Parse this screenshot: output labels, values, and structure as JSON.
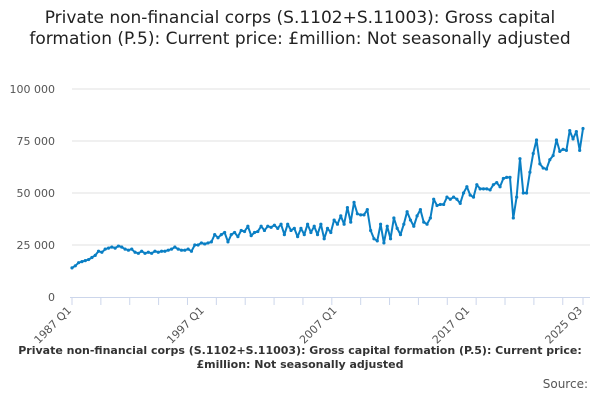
{
  "title": "Private non-financial corps (S.1102+S.11003): Gross capital formation (P.5): Current price: £million: Not seasonally adjusted",
  "footer": "Private non-financial corps (S.1102+S.11003): Gross capital formation (P.5): Current price: £million: Not seasonally adjusted",
  "source_label": "Source:",
  "colors": {
    "line": "#0a7fc4",
    "grid": "#e0e0e0",
    "axis": "#ccd6eb"
  },
  "chart_data": {
    "type": "line",
    "title": "Private non-financial corps (S.1102+S.11003): Gross capital formation (P.5): Current price: £million: Not seasonally adjusted",
    "xlabel": "",
    "ylabel": "",
    "x_start": "1987 Q1",
    "x_end": "2025 Q3",
    "frequency": "quarterly",
    "ylim": [
      0,
      100000
    ],
    "yticks": [
      0,
      25000,
      50000,
      75000,
      100000
    ],
    "ytick_labels": [
      "0",
      "25 000",
      "50 000",
      "75 000",
      "100 000"
    ],
    "xtick_labels": [
      {
        "label": "1987 Q1",
        "index": 0
      },
      {
        "label": "1997 Q1",
        "index": 40
      },
      {
        "label": "2007 Q1",
        "index": 80
      },
      {
        "label": "2017 Q1",
        "index": 120
      },
      {
        "label": "2025 Q3",
        "index": 154
      }
    ],
    "grid": true,
    "legend": "none",
    "values": [
      14000,
      15000,
      16500,
      17000,
      17500,
      18000,
      19000,
      20000,
      22000,
      21500,
      23000,
      23500,
      24000,
      23500,
      24500,
      24000,
      23000,
      22500,
      23000,
      21500,
      21000,
      22000,
      21000,
      21500,
      21000,
      22000,
      21500,
      22000,
      22000,
      22500,
      23000,
      24000,
      23000,
      22500,
      22500,
      23000,
      22000,
      25000,
      25000,
      26000,
      25500,
      26000,
      26500,
      30000,
      28500,
      30000,
      31000,
      26500,
      30000,
      31000,
      29000,
      32000,
      31500,
      34000,
      29500,
      31000,
      31500,
      34000,
      32000,
      34000,
      33500,
      34500,
      33000,
      35000,
      30000,
      35000,
      32000,
      33000,
      29000,
      33000,
      30000,
      35000,
      31000,
      34000,
      30000,
      35000,
      28000,
      33000,
      31000,
      37000,
      35000,
      39000,
      35000,
      43000,
      36000,
      45500,
      40000,
      39500,
      39500,
      42000,
      32000,
      28000,
      27000,
      35000,
      26000,
      34000,
      28000,
      38000,
      33000,
      30000,
      35000,
      41000,
      37000,
      34000,
      39000,
      42000,
      36000,
      35000,
      38000,
      47000,
      44000,
      44500,
      44500,
      48000,
      47000,
      48000,
      47000,
      45000,
      50000,
      53000,
      49000,
      48000,
      54000,
      52000,
      52000,
      52000,
      51500,
      54000,
      55000,
      53000,
      57000,
      57500,
      57500,
      38000,
      48000,
      66500,
      50000,
      50000,
      60000,
      69000,
      75500,
      64000,
      62000,
      61500,
      66000,
      68000,
      75500,
      70000,
      71000,
      70500,
      80000,
      76000,
      79500,
      70500,
      81000
    ]
  }
}
